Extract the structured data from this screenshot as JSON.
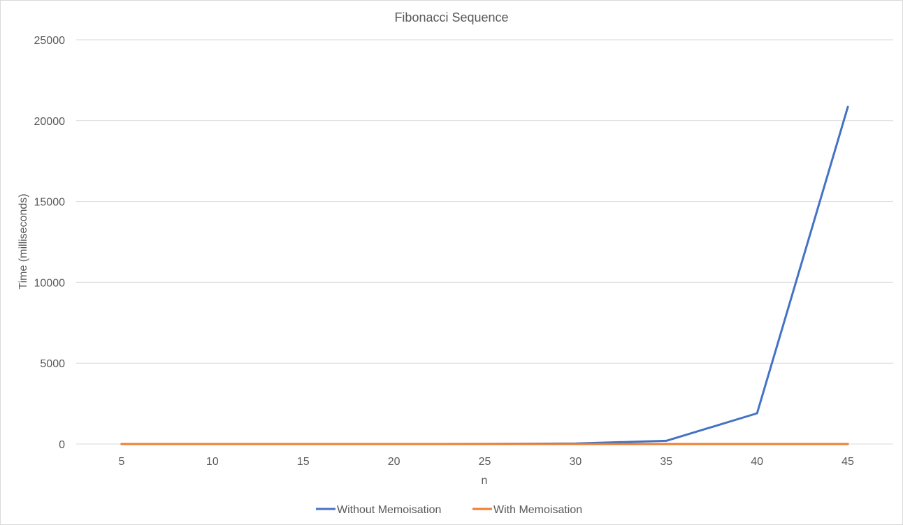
{
  "chart_data": {
    "type": "line",
    "title": "Fibonacci Sequence",
    "xlabel": "n",
    "ylabel": "Time (milliseconds)",
    "categories": [
      "5",
      "10",
      "15",
      "20",
      "25",
      "30",
      "35",
      "40",
      "45"
    ],
    "ylim": [
      0,
      25000
    ],
    "yticks": [
      "0",
      "5000",
      "10000",
      "15000",
      "20000",
      "25000"
    ],
    "grid": true,
    "legend_position": "bottom",
    "series": [
      {
        "name": "Without Memoisation",
        "color": "#4472C4",
        "values": [
          0,
          0,
          0,
          1,
          3,
          30,
          200,
          1900,
          20850
        ]
      },
      {
        "name": "With Memoisation",
        "color": "#ED7D31",
        "values": [
          0,
          0,
          0,
          0,
          0,
          0,
          0,
          0,
          0
        ]
      }
    ]
  }
}
